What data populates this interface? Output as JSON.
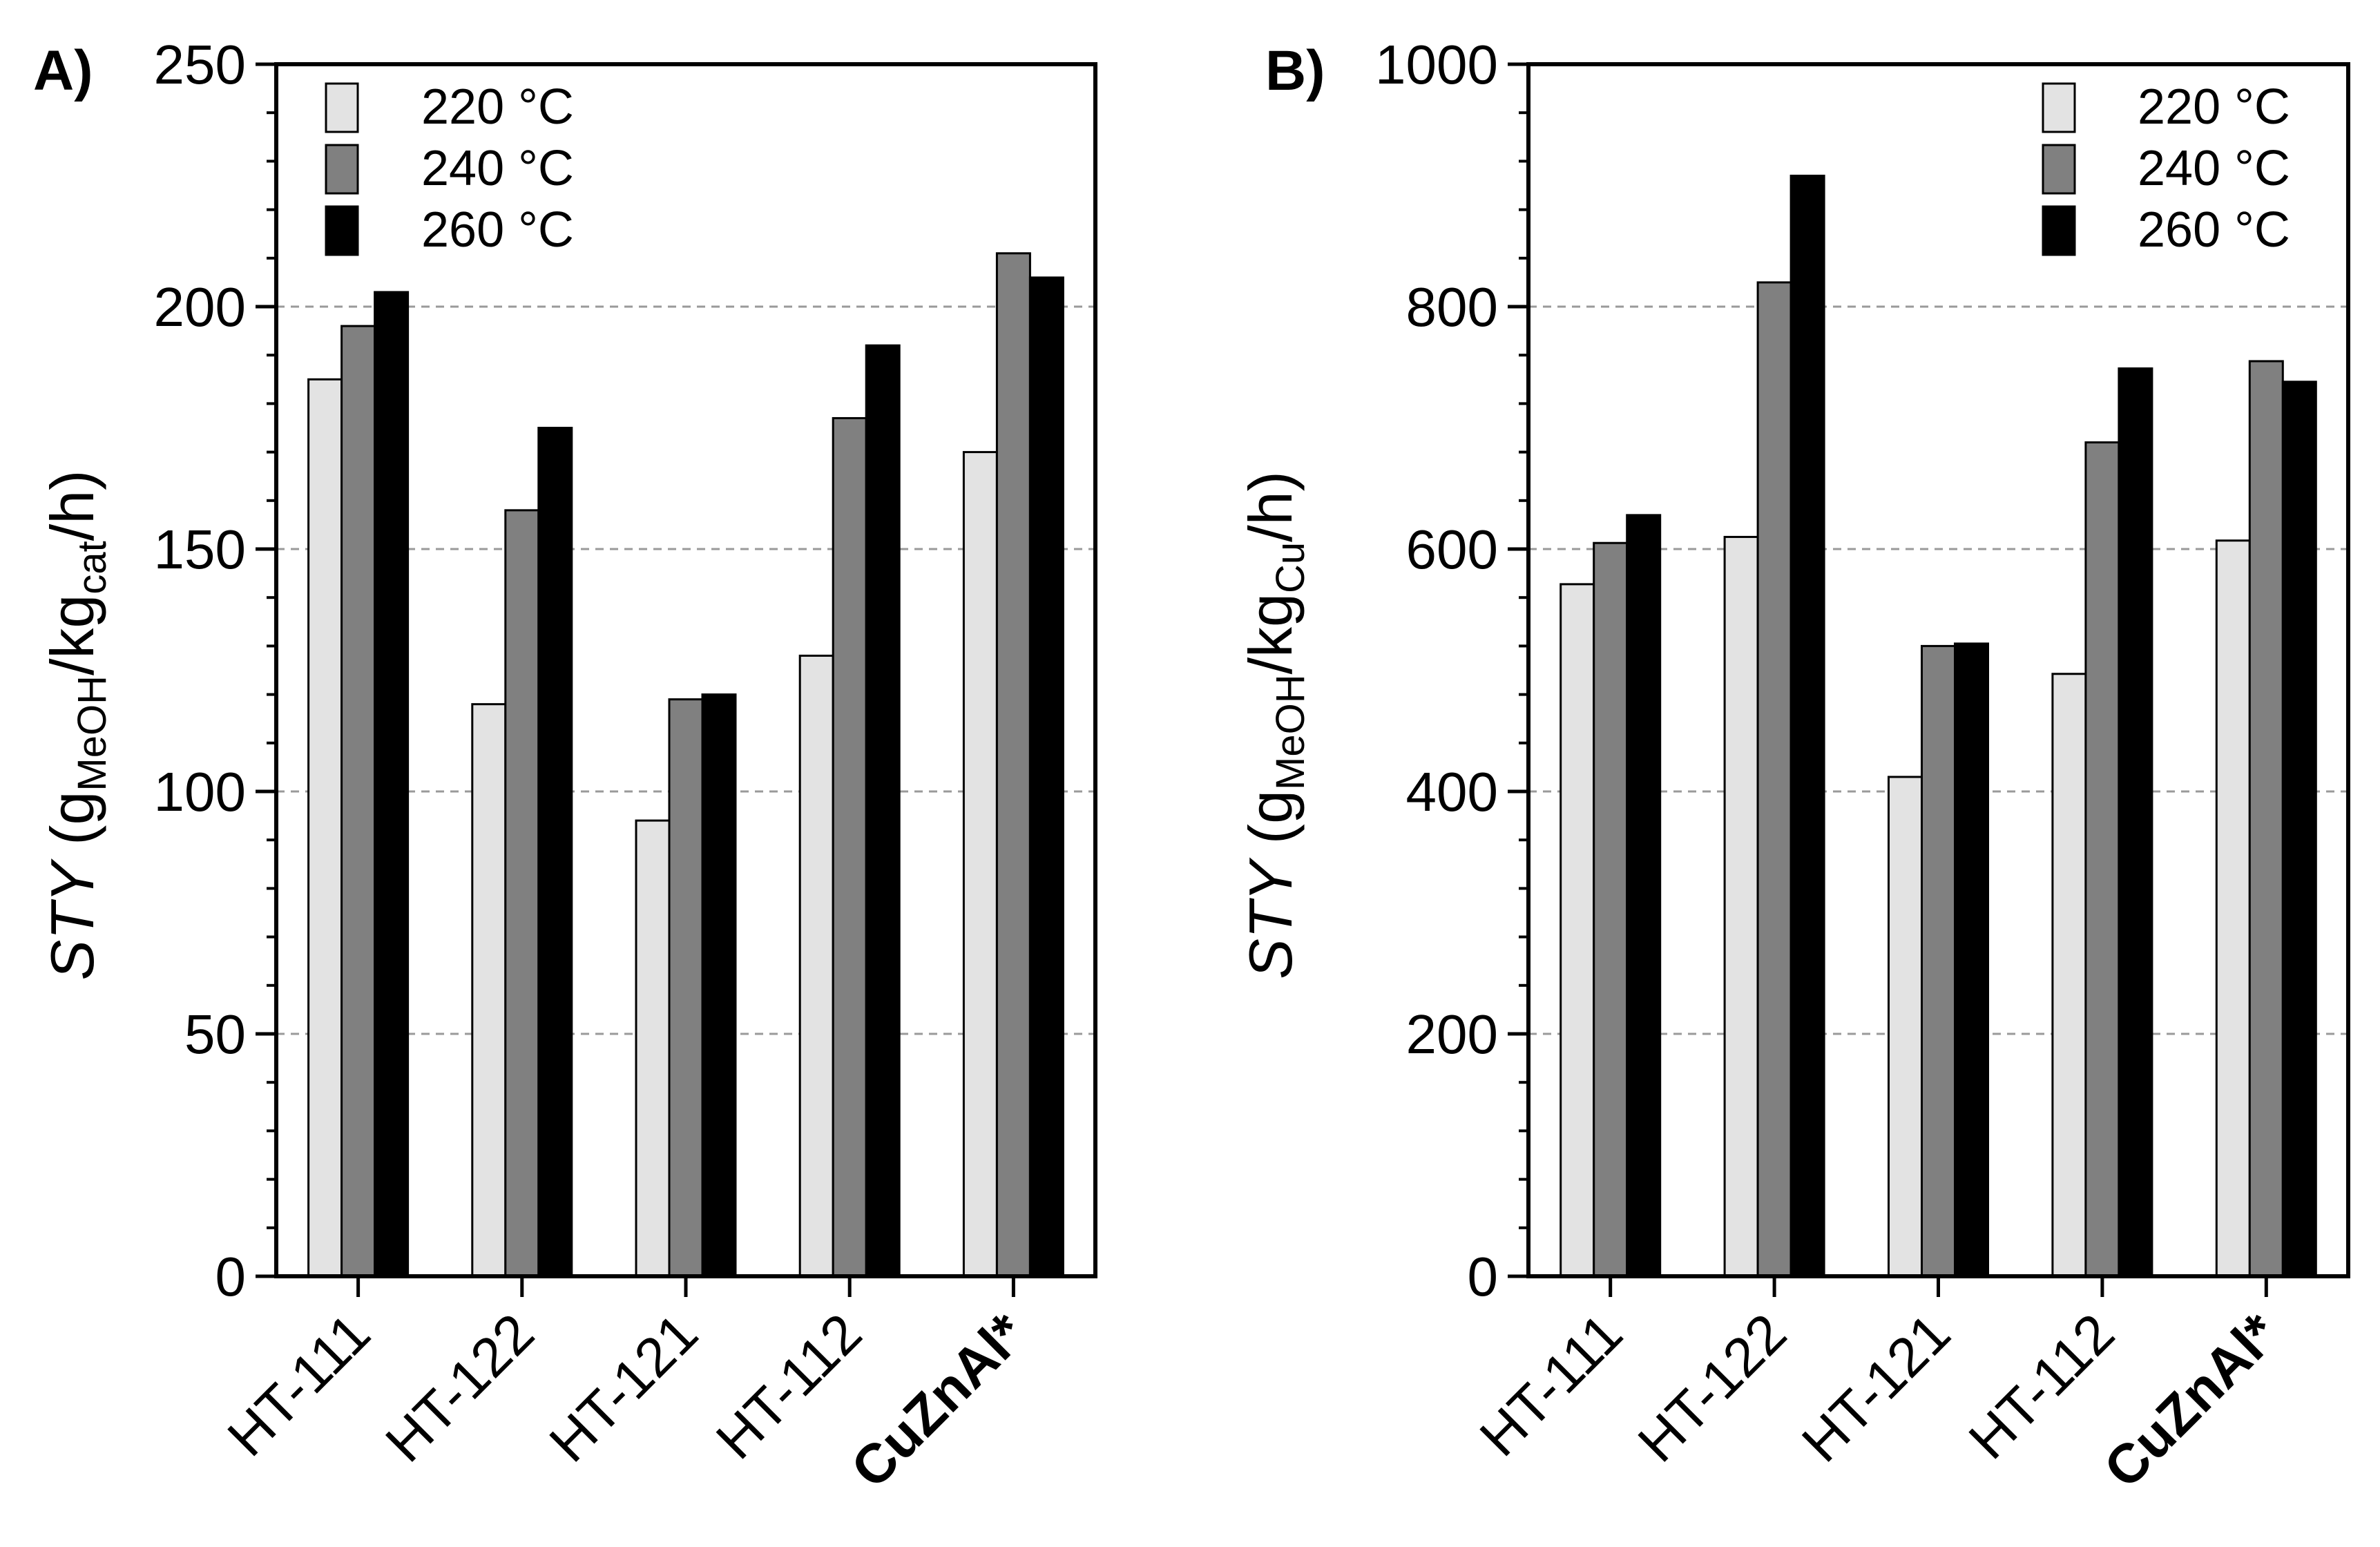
{
  "figure": {
    "panels": [
      {
        "panel_label": "A)",
        "ylabel": {
          "prefix": "STY",
          "open": " (g",
          "sub1": "MeOH",
          "mid": "/kg",
          "sub2": "cat",
          "close": "/h)"
        }
      },
      {
        "panel_label": "B)",
        "ylabel": {
          "prefix": "STY",
          "open": " (g",
          "sub1": "MeOH",
          "mid": "/kg",
          "sub2": "Cu",
          "close": "/h)"
        }
      }
    ]
  },
  "chart_data": [
    {
      "type": "bar",
      "panel": "A)",
      "ylabel": "STY (gMeOH/kgcat/h)",
      "categories": [
        "HT-111",
        "HT-122",
        "HT-121",
        "HT-112",
        "CuZnAl*"
      ],
      "bold_categories": [
        "CuZnAl*"
      ],
      "ylim": [
        0,
        250
      ],
      "yticks": [
        "0",
        "50",
        "100",
        "150",
        "200",
        "250"
      ],
      "minor_tick_step": 10,
      "gridlines": [
        50,
        100,
        150,
        200
      ],
      "legend_position": "top-left",
      "series": [
        {
          "name": "220 °C",
          "color": "#e3e3e3",
          "values": [
            185,
            118,
            94,
            128,
            170
          ]
        },
        {
          "name": "240 °C",
          "color": "#808080",
          "values": [
            196,
            158,
            119,
            177,
            211
          ]
        },
        {
          "name": "260 °C",
          "color": "#000000",
          "values": [
            203,
            175,
            120,
            192,
            206
          ]
        }
      ]
    },
    {
      "type": "bar",
      "panel": "B)",
      "ylabel": "STY (gMeOH/kgCu/h)",
      "categories": [
        "HT-111",
        "HT-122",
        "HT-121",
        "HT-112",
        "CuZnAl*"
      ],
      "bold_categories": [
        "CuZnAl*"
      ],
      "ylim": [
        0,
        1000
      ],
      "yticks": [
        "0",
        "200",
        "400",
        "600",
        "800",
        "1000"
      ],
      "minor_tick_step": 40,
      "gridlines": [
        200,
        400,
        600,
        800
      ],
      "legend_position": "top-right",
      "series": [
        {
          "name": "220 °C",
          "color": "#e3e3e3",
          "values": [
            571,
            610,
            412,
            497,
            607
          ]
        },
        {
          "name": "240 °C",
          "color": "#808080",
          "values": [
            605,
            820,
            520,
            688,
            755
          ]
        },
        {
          "name": "260 °C",
          "color": "#000000",
          "values": [
            628,
            908,
            522,
            749,
            738
          ]
        }
      ]
    }
  ]
}
